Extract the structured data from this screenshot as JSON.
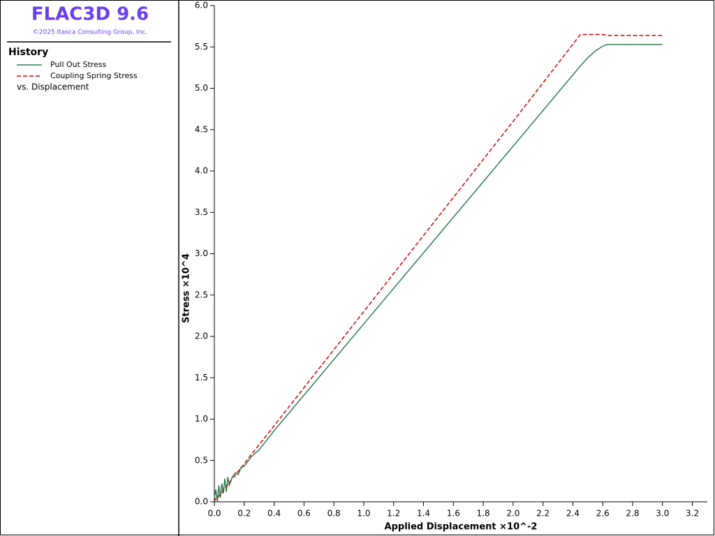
{
  "header": {
    "title": "FLAC3D 9.6",
    "copyright": "©2025 Itasca Consulting Group, Inc."
  },
  "chart_data": {
    "type": "line",
    "legend_title": "History",
    "legend_note": "vs. Displacement",
    "xlabel": "Applied Displacement ×10^-2",
    "ylabel": "Stress ×10^4",
    "x": [
      0,
      0.01,
      0.02,
      0.03,
      0.04,
      0.05,
      0.06,
      0.07,
      0.08,
      0.09,
      0.1,
      0.12,
      0.14,
      0.16,
      0.18,
      0.2,
      0.25,
      0.3,
      0.4,
      1.0,
      2.0,
      2.45,
      2.5,
      2.55,
      2.6,
      2.63,
      3.0
    ],
    "series": [
      {
        "name": "Pull Out Stress",
        "color": "#2e7d4f",
        "line_style": "solid",
        "values": [
          0.05,
          0.15,
          0.0,
          0.2,
          0.05,
          0.22,
          0.1,
          0.28,
          0.12,
          0.3,
          0.2,
          0.3,
          0.35,
          0.33,
          0.42,
          0.43,
          0.55,
          0.63,
          0.86,
          2.15,
          4.3,
          5.27,
          5.37,
          5.45,
          5.51,
          5.53,
          5.53
        ]
      },
      {
        "name": "Coupling Spring Stress",
        "color": "#d40000",
        "line_style": "dashed",
        "values": [
          0,
          0.05,
          0.05,
          0.07,
          0.09,
          0.11,
          0.14,
          0.16,
          0.18,
          0.21,
          0.23,
          0.28,
          0.32,
          0.37,
          0.41,
          0.46,
          0.58,
          0.69,
          0.92,
          2.3,
          4.6,
          5.65,
          5.65,
          5.65,
          5.65,
          5.64,
          5.64
        ]
      }
    ],
    "xlim": [
      0,
      3.3
    ],
    "ylim": [
      0,
      6
    ],
    "xticks": [
      {
        "value": 0,
        "label": "0.0"
      },
      {
        "value": 0.2,
        "label": "0.2"
      },
      {
        "value": 0.4,
        "label": "0.4"
      },
      {
        "value": 0.6,
        "label": "0.6"
      },
      {
        "value": 0.8,
        "label": "0.8"
      },
      {
        "value": 1,
        "label": "1.0"
      },
      {
        "value": 1.2,
        "label": "1.2"
      },
      {
        "value": 1.4,
        "label": "1.4"
      },
      {
        "value": 1.6,
        "label": "1.6"
      },
      {
        "value": 1.8,
        "label": "1.8"
      },
      {
        "value": 2,
        "label": "2.0"
      },
      {
        "value": 2.2,
        "label": "2.2"
      },
      {
        "value": 2.4,
        "label": "2.4"
      },
      {
        "value": 2.6,
        "label": "2.6"
      },
      {
        "value": 2.8,
        "label": "2.8"
      },
      {
        "value": 3,
        "label": "3.0"
      },
      {
        "value": 3.2,
        "label": "3.2"
      }
    ],
    "yticks": [
      {
        "value": 0,
        "label": "0.0"
      },
      {
        "value": 0.5,
        "label": "0.5"
      },
      {
        "value": 1,
        "label": "1.0"
      },
      {
        "value": 1.5,
        "label": "1.5"
      },
      {
        "value": 2,
        "label": "2.0"
      },
      {
        "value": 2.5,
        "label": "2.5"
      },
      {
        "value": 3,
        "label": "3.0"
      },
      {
        "value": 3.5,
        "label": "3.5"
      },
      {
        "value": 4,
        "label": "4.0"
      },
      {
        "value": 4.5,
        "label": "4.5"
      },
      {
        "value": 5,
        "label": "5.0"
      },
      {
        "value": 5.5,
        "label": "5.5"
      },
      {
        "value": 6,
        "label": "6.0"
      }
    ],
    "grid": false
  }
}
